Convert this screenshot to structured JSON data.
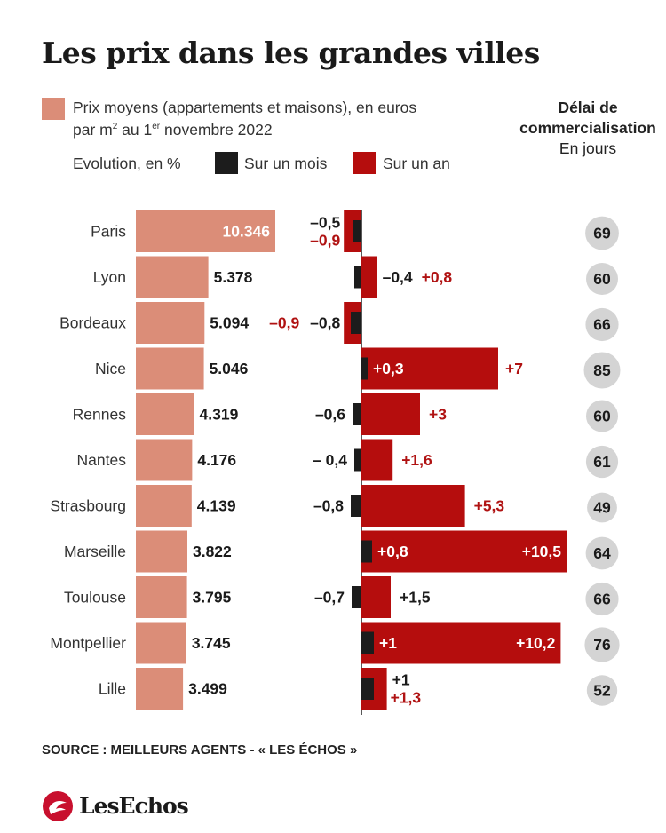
{
  "title": "Les prix dans les grandes villes",
  "legend": {
    "price_line1": "Prix moyens (appartements et maisons), en euros",
    "price_line2_a": "par m",
    "price_line2_sup": "2",
    "price_line2_b": " au 1",
    "price_line2_sup2": "er",
    "price_line2_c": " novembre 2022",
    "evolution_label": "Evolution, en %",
    "month_label": "Sur un mois",
    "year_label": "Sur un an"
  },
  "delai": {
    "title_line1": "Délai de",
    "title_line2": "commercialisation",
    "subtitle": "En jours"
  },
  "source": "SOURCE : MEILLEURS AGENTS - « LES ÉCHOS »",
  "logo": "LesEchos",
  "colors": {
    "price": "#db8d78",
    "month": "#1c1c1c",
    "year": "#b50d0d",
    "circle": "#d4d4d4",
    "year_text": "#b01212"
  },
  "chart_data": {
    "type": "bar",
    "categories": [
      "Paris",
      "Lyon",
      "Bordeaux",
      "Nice",
      "Rennes",
      "Nantes",
      "Strasbourg",
      "Marseille",
      "Toulouse",
      "Montpellier",
      "Lille"
    ],
    "series": [
      {
        "name": "Prix moyens (appartements et maisons), en euros par m2 au 1er novembre 2022",
        "values": [
          10346,
          5378,
          5094,
          5046,
          4319,
          4176,
          4139,
          3822,
          3795,
          3745,
          3499
        ],
        "labels": [
          "10.346",
          "5.378",
          "5.094",
          "5.046",
          "4.319",
          "4.176",
          "4.139",
          "3.822",
          "3.795",
          "3.745",
          "3.499"
        ]
      },
      {
        "name": "Sur un mois",
        "values": [
          -0.5,
          -0.4,
          -0.8,
          0.3,
          -0.6,
          -0.4,
          -0.8,
          0.8,
          -0.7,
          1,
          1
        ],
        "labels": [
          "–0,5",
          "–0,4",
          "–0,8",
          "+0,3",
          "–0,6",
          "– 0,4",
          "–0,8",
          "+0,8",
          "–0,7",
          "+1",
          "+1"
        ]
      },
      {
        "name": "Sur un an",
        "values": [
          -0.9,
          0.8,
          -0.9,
          7,
          3,
          1.6,
          5.3,
          10.5,
          1.5,
          10.2,
          1.3
        ],
        "labels": [
          "–0,9",
          "+0,8",
          "–0,9",
          "+7",
          "+3",
          "+1,6",
          "+5,3",
          "+10,5",
          "+1,5",
          "+10,2",
          "+1,3"
        ]
      },
      {
        "name": "Délai de commercialisation En jours",
        "values": [
          69,
          60,
          66,
          85,
          60,
          61,
          49,
          64,
          66,
          76,
          52
        ]
      }
    ]
  }
}
